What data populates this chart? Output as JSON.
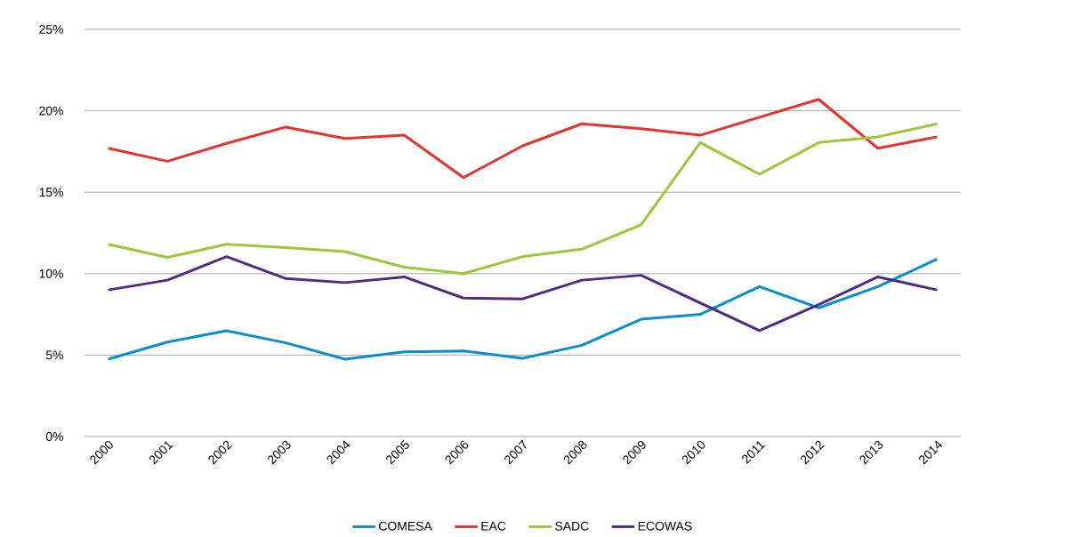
{
  "chart_data": {
    "type": "line",
    "categories": [
      "2000",
      "2001",
      "2002",
      "2003",
      "2004",
      "2005",
      "2006",
      "2007",
      "2008",
      "2009",
      "2010",
      "2011",
      "2012",
      "2013",
      "2014"
    ],
    "series": [
      {
        "name": "COMESA",
        "color": "#0a8fce",
        "values": [
          4.75,
          5.8,
          6.5,
          5.75,
          4.75,
          5.2,
          5.25,
          4.8,
          5.6,
          7.2,
          7.5,
          9.2,
          7.9,
          9.2,
          10.9
        ]
      },
      {
        "name": "EAC",
        "color": "#e5342d",
        "values": [
          17.7,
          16.9,
          18.0,
          19.0,
          18.3,
          18.5,
          15.9,
          17.85,
          19.2,
          18.9,
          18.5,
          19.6,
          20.7,
          17.7,
          18.4
        ]
      },
      {
        "name": "SADC",
        "color": "#9dc73b",
        "values": [
          11.8,
          11.0,
          11.8,
          11.6,
          11.35,
          10.4,
          10.0,
          11.05,
          11.5,
          13.0,
          18.05,
          16.1,
          18.05,
          18.4,
          19.2
        ]
      },
      {
        "name": "ECOWAS",
        "color": "#4b2d82",
        "values": [
          9.0,
          9.6,
          11.05,
          9.7,
          9.45,
          9.8,
          8.5,
          8.45,
          9.6,
          9.9,
          8.2,
          6.5,
          8.1,
          9.8,
          9.0
        ]
      }
    ],
    "ylim": [
      0,
      25
    ],
    "yticks": [
      {
        "value": 0,
        "label": "0%"
      },
      {
        "value": 5,
        "label": "5%"
      },
      {
        "value": 10,
        "label": "10%"
      },
      {
        "value": 15,
        "label": "15%"
      },
      {
        "value": 20,
        "label": "20%"
      },
      {
        "value": 25,
        "label": "25%"
      }
    ],
    "grid": "y",
    "legend": "bottom",
    "marker": "none",
    "line_style": "solid"
  }
}
